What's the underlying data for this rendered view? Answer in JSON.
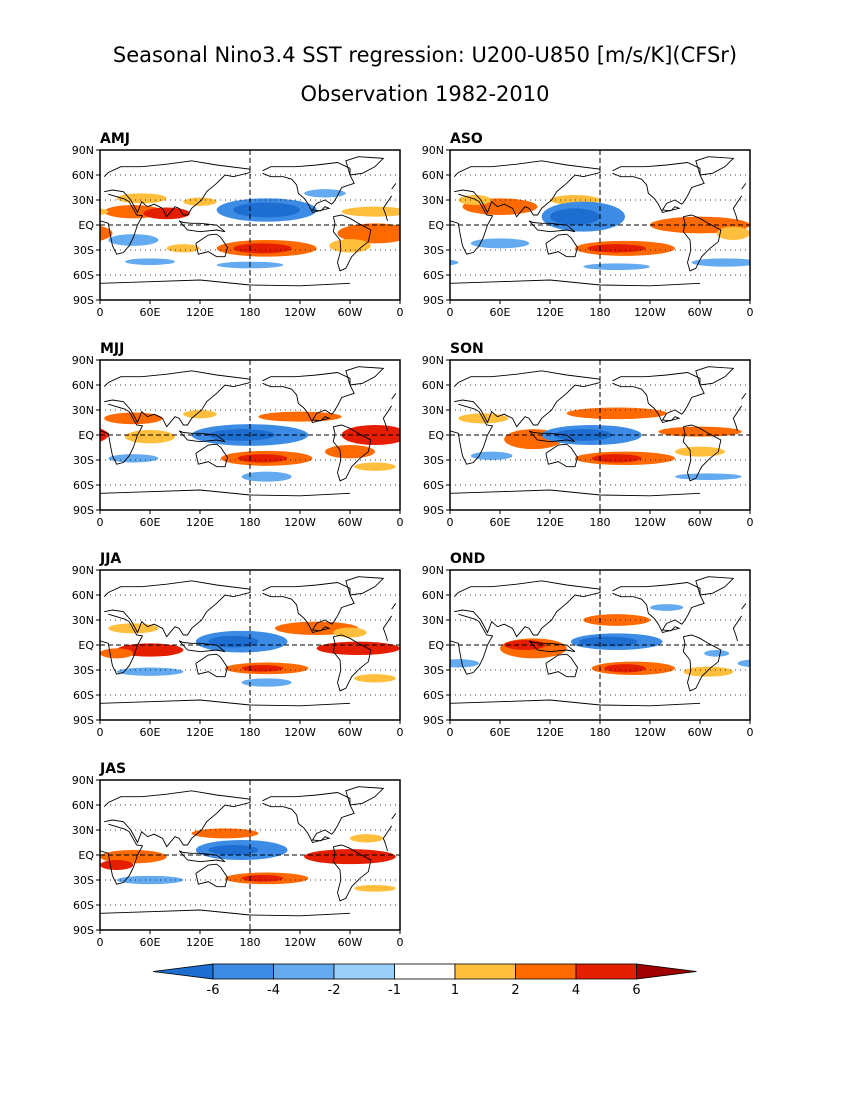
{
  "title": "Seasonal Nino3.4 SST regression: U200-U850 [m/s/K](CFSr)",
  "subtitle": "Observation 1982-2010",
  "chart_data": {
    "type": "heatmap",
    "variable": "U200-U850",
    "units": "m/s/K",
    "panels": [
      "AMJ",
      "ASO",
      "MJJ",
      "SON",
      "JJA",
      "OND",
      "JAS"
    ],
    "x_tick_labels": [
      "0",
      "60E",
      "120E",
      "180",
      "120W",
      "60W",
      "0"
    ],
    "y_tick_labels": [
      "90N",
      "60N",
      "30N",
      "EQ",
      "30S",
      "60S",
      "90S"
    ],
    "xlim": [
      0,
      360
    ],
    "ylim": [
      -90,
      90
    ],
    "reference_lines": [
      "EQ",
      "180"
    ],
    "colorbar": {
      "levels": [
        -6,
        -4,
        -2,
        -1,
        1,
        2,
        4,
        6
      ],
      "labels": [
        "-6",
        "-4",
        "-2",
        "-1",
        "1",
        "2",
        "4",
        "6"
      ],
      "colors": [
        "#1e6ed2",
        "#3c8ce6",
        "#64aaf0",
        "#9bd0fa",
        "#ffffff",
        "#ffbe3c",
        "#ff6a00",
        "#e61e00",
        "#a00000"
      ]
    }
  }
}
